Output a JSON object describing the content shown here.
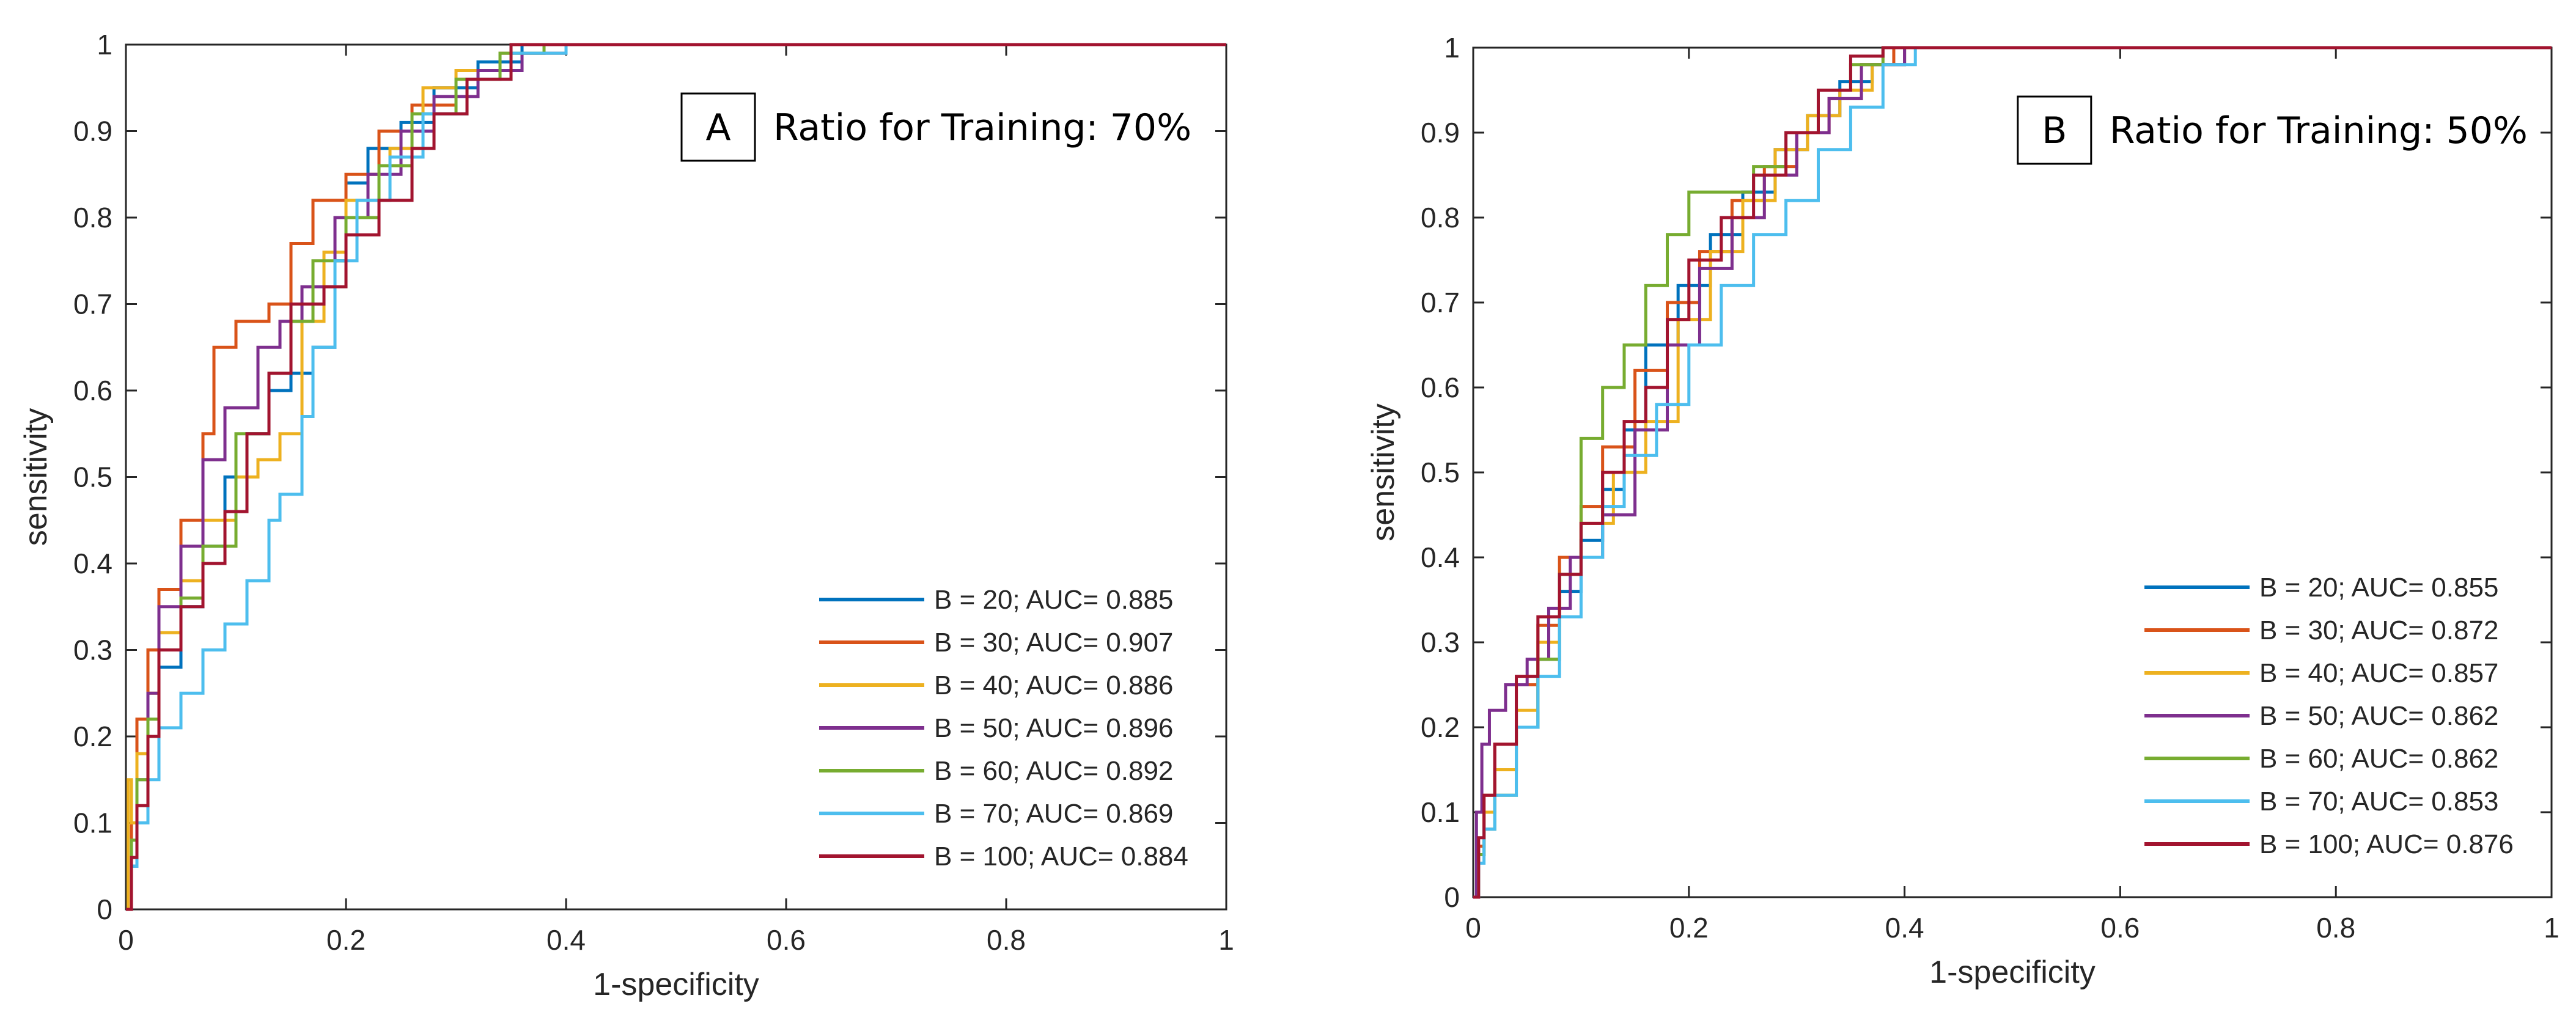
{
  "chart_data": [
    {
      "type": "line",
      "panel_letter": "A",
      "title": "Ratio for Training: 70%",
      "xlabel": "1-specificity",
      "ylabel": "sensitivity",
      "xlim": [
        0,
        1
      ],
      "ylim": [
        0,
        1
      ],
      "xticks": [
        "0",
        "0.2",
        "0.4",
        "0.6",
        "0.8",
        "1"
      ],
      "yticks": [
        "0",
        "0.1",
        "0.2",
        "0.3",
        "0.4",
        "0.5",
        "0.6",
        "0.7",
        "0.8",
        "0.9",
        "1"
      ],
      "legend_position": "bottom-right",
      "series": [
        {
          "name": "B = 20; AUC= 0.885",
          "color": "#0072BD",
          "x": [
            0,
            0.005,
            0.01,
            0.02,
            0.03,
            0.05,
            0.07,
            0.09,
            0.11,
            0.13,
            0.15,
            0.17,
            0.19,
            0.2,
            0.22,
            0.25,
            0.28,
            0.32,
            0.36,
            0.45,
            0.54,
            1
          ],
          "y": [
            0,
            0.05,
            0.1,
            0.2,
            0.28,
            0.35,
            0.42,
            0.5,
            0.55,
            0.6,
            0.62,
            0.65,
            0.75,
            0.84,
            0.88,
            0.91,
            0.95,
            0.98,
            1,
            1,
            1,
            1
          ]
        },
        {
          "name": "B = 30; AUC= 0.907",
          "color": "#D95319",
          "x": [
            0,
            0.005,
            0.01,
            0.02,
            0.03,
            0.05,
            0.07,
            0.08,
            0.1,
            0.13,
            0.15,
            0.17,
            0.2,
            0.23,
            0.26,
            0.3,
            0.34,
            0.38,
            0.45,
            1
          ],
          "y": [
            0,
            0.1,
            0.22,
            0.3,
            0.37,
            0.45,
            0.55,
            0.65,
            0.68,
            0.7,
            0.77,
            0.82,
            0.85,
            0.9,
            0.93,
            0.96,
            0.99,
            1,
            1,
            1
          ]
        },
        {
          "name": "B = 40; AUC= 0.886",
          "color": "#EDB120",
          "x": [
            0,
            0.002,
            0.005,
            0.01,
            0.02,
            0.03,
            0.05,
            0.07,
            0.1,
            0.12,
            0.14,
            0.16,
            0.18,
            0.2,
            0.24,
            0.27,
            0.3,
            0.35,
            0.4,
            1
          ],
          "y": [
            0,
            0.15,
            0.1,
            0.18,
            0.25,
            0.32,
            0.38,
            0.45,
            0.5,
            0.52,
            0.55,
            0.68,
            0.76,
            0.82,
            0.88,
            0.95,
            0.97,
            0.99,
            1,
            1
          ]
        },
        {
          "name": "B = 50; AUC= 0.896",
          "color": "#7E2F8E",
          "x": [
            0,
            0.005,
            0.01,
            0.02,
            0.03,
            0.05,
            0.07,
            0.09,
            0.12,
            0.14,
            0.16,
            0.19,
            0.22,
            0.25,
            0.28,
            0.32,
            0.36,
            0.4,
            1
          ],
          "y": [
            0,
            0.06,
            0.15,
            0.25,
            0.35,
            0.42,
            0.52,
            0.58,
            0.65,
            0.68,
            0.72,
            0.8,
            0.85,
            0.9,
            0.94,
            0.97,
            0.99,
            1,
            1
          ]
        },
        {
          "name": "B = 60; AUC= 0.892",
          "color": "#77AC30",
          "x": [
            0,
            0.005,
            0.01,
            0.02,
            0.03,
            0.05,
            0.07,
            0.1,
            0.13,
            0.15,
            0.17,
            0.2,
            0.23,
            0.26,
            0.3,
            0.34,
            0.38,
            1
          ],
          "y": [
            0,
            0.08,
            0.15,
            0.22,
            0.3,
            0.36,
            0.42,
            0.55,
            0.62,
            0.68,
            0.75,
            0.8,
            0.86,
            0.92,
            0.96,
            0.99,
            1,
            1
          ]
        },
        {
          "name": "B = 70; AUC= 0.869",
          "color": "#4DBEEE",
          "x": [
            0,
            0.005,
            0.01,
            0.02,
            0.03,
            0.05,
            0.07,
            0.09,
            0.11,
            0.13,
            0.14,
            0.16,
            0.17,
            0.19,
            0.21,
            0.24,
            0.27,
            0.31,
            0.35,
            0.4,
            1
          ],
          "y": [
            0,
            0.05,
            0.1,
            0.15,
            0.21,
            0.25,
            0.3,
            0.33,
            0.38,
            0.45,
            0.48,
            0.57,
            0.65,
            0.75,
            0.82,
            0.87,
            0.92,
            0.96,
            0.99,
            1,
            1
          ]
        },
        {
          "name": "B = 100; AUC= 0.884",
          "color": "#A2142F",
          "x": [
            0,
            0.005,
            0.01,
            0.02,
            0.03,
            0.05,
            0.07,
            0.09,
            0.11,
            0.13,
            0.15,
            0.18,
            0.2,
            0.23,
            0.26,
            0.28,
            0.31,
            0.35,
            0.4,
            1
          ],
          "y": [
            0,
            0.06,
            0.12,
            0.2,
            0.3,
            0.35,
            0.4,
            0.46,
            0.55,
            0.62,
            0.7,
            0.72,
            0.78,
            0.82,
            0.88,
            0.92,
            0.96,
            1,
            1,
            1
          ]
        }
      ]
    },
    {
      "type": "line",
      "panel_letter": "B",
      "title": "Ratio for Training: 50%",
      "xlabel": "1-specificity",
      "ylabel": "sensitivity",
      "xlim": [
        0,
        1
      ],
      "ylim": [
        0,
        1
      ],
      "xticks": [
        "0",
        "0.2",
        "0.4",
        "0.6",
        "0.8",
        "1"
      ],
      "yticks": [
        "0",
        "0.1",
        "0.2",
        "0.3",
        "0.4",
        "0.5",
        "0.6",
        "0.7",
        "0.8",
        "0.9",
        "1"
      ],
      "legend_position": "bottom-right",
      "series": [
        {
          "name": "B = 20; AUC= 0.855",
          "color": "#0072BD",
          "x": [
            0,
            0.005,
            0.01,
            0.02,
            0.04,
            0.06,
            0.08,
            0.1,
            0.12,
            0.14,
            0.16,
            0.19,
            0.22,
            0.25,
            0.28,
            0.31,
            0.34,
            0.37,
            0.4,
            0.44,
            1
          ],
          "y": [
            0,
            0.05,
            0.1,
            0.15,
            0.2,
            0.28,
            0.36,
            0.42,
            0.48,
            0.55,
            0.65,
            0.72,
            0.78,
            0.83,
            0.88,
            0.92,
            0.96,
            0.98,
            1,
            1,
            1
          ]
        },
        {
          "name": "B = 30; AUC= 0.872",
          "color": "#D95319",
          "x": [
            0,
            0.005,
            0.01,
            0.02,
            0.04,
            0.06,
            0.08,
            0.1,
            0.12,
            0.15,
            0.18,
            0.21,
            0.24,
            0.27,
            0.3,
            0.33,
            0.36,
            0.39,
            1
          ],
          "y": [
            0,
            0.06,
            0.12,
            0.18,
            0.25,
            0.32,
            0.4,
            0.46,
            0.53,
            0.62,
            0.7,
            0.76,
            0.82,
            0.86,
            0.9,
            0.94,
            0.98,
            1,
            1
          ]
        },
        {
          "name": "B = 40; AUC= 0.857",
          "color": "#EDB120",
          "x": [
            0,
            0.005,
            0.01,
            0.02,
            0.04,
            0.06,
            0.08,
            0.1,
            0.13,
            0.16,
            0.19,
            0.22,
            0.25,
            0.28,
            0.31,
            0.34,
            0.37,
            0.4,
            1
          ],
          "y": [
            0,
            0.05,
            0.1,
            0.15,
            0.22,
            0.3,
            0.38,
            0.44,
            0.5,
            0.56,
            0.68,
            0.76,
            0.82,
            0.88,
            0.92,
            0.95,
            0.98,
            1,
            1
          ]
        },
        {
          "name": "B = 50; AUC= 0.862",
          "color": "#7E2F8E",
          "x": [
            0,
            0.003,
            0.008,
            0.015,
            0.03,
            0.05,
            0.07,
            0.09,
            0.12,
            0.15,
            0.18,
            0.21,
            0.24,
            0.27,
            0.3,
            0.33,
            0.36,
            0.4,
            1
          ],
          "y": [
            0,
            0.1,
            0.18,
            0.22,
            0.25,
            0.28,
            0.34,
            0.4,
            0.45,
            0.55,
            0.65,
            0.74,
            0.8,
            0.85,
            0.9,
            0.94,
            0.98,
            1,
            1
          ]
        },
        {
          "name": "B = 60; AUC= 0.862",
          "color": "#77AC30",
          "x": [
            0,
            0.005,
            0.01,
            0.02,
            0.04,
            0.06,
            0.08,
            0.1,
            0.12,
            0.14,
            0.16,
            0.18,
            0.2,
            0.23,
            0.26,
            0.29,
            0.32,
            0.35,
            0.38,
            1
          ],
          "y": [
            0,
            0.05,
            0.08,
            0.12,
            0.2,
            0.28,
            0.38,
            0.54,
            0.6,
            0.65,
            0.72,
            0.78,
            0.83,
            0.83,
            0.86,
            0.9,
            0.95,
            0.98,
            1,
            1
          ]
        },
        {
          "name": "B = 70; AUC= 0.853",
          "color": "#4DBEEE",
          "x": [
            0,
            0.005,
            0.01,
            0.02,
            0.04,
            0.06,
            0.08,
            0.1,
            0.12,
            0.14,
            0.17,
            0.2,
            0.23,
            0.26,
            0.29,
            0.32,
            0.35,
            0.38,
            0.41,
            1
          ],
          "y": [
            0,
            0.04,
            0.08,
            0.12,
            0.2,
            0.26,
            0.33,
            0.4,
            0.46,
            0.52,
            0.58,
            0.65,
            0.72,
            0.78,
            0.82,
            0.88,
            0.93,
            0.98,
            1,
            1
          ]
        },
        {
          "name": "B = 100; AUC= 0.876",
          "color": "#A2142F",
          "x": [
            0,
            0.005,
            0.01,
            0.02,
            0.04,
            0.06,
            0.08,
            0.1,
            0.12,
            0.14,
            0.16,
            0.18,
            0.2,
            0.23,
            0.26,
            0.29,
            0.32,
            0.35,
            0.38,
            1
          ],
          "y": [
            0,
            0.07,
            0.12,
            0.18,
            0.26,
            0.33,
            0.38,
            0.44,
            0.5,
            0.56,
            0.6,
            0.68,
            0.75,
            0.8,
            0.85,
            0.9,
            0.95,
            0.99,
            1,
            1
          ]
        }
      ]
    }
  ]
}
